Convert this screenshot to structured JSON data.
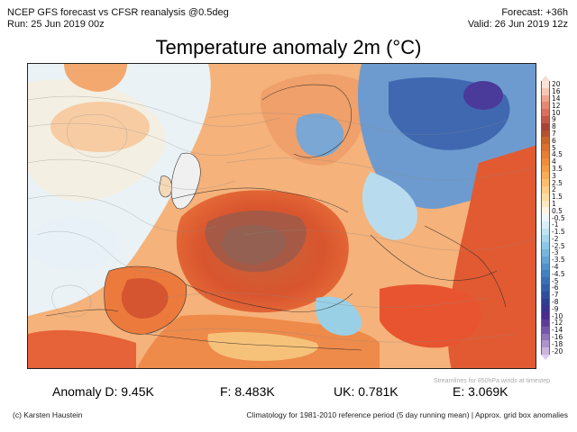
{
  "header": {
    "model": "NCEP GFS forecast vs CFSR reanalysis @0.5deg",
    "run": "Run: 25 Jun 2019 00z",
    "forecast": "Forecast: +36h",
    "valid": "Valid: 26 Jun 2019 12z"
  },
  "title": "Temperature anomaly 2m (°C)",
  "colorbar": {
    "labels": [
      "20",
      "16",
      "14",
      "12",
      "10",
      "9",
      "8",
      "7",
      "6",
      "5",
      "4.5",
      "4",
      "3.5",
      "3",
      "2.5",
      "2",
      "1.5",
      "1",
      "0.5",
      "-0.5",
      "-1",
      "-1.5",
      "-2",
      "-2.5",
      "-3",
      "-3.5",
      "-4",
      "-4.5",
      "-5",
      "-6",
      "-7",
      "-8",
      "-9",
      "-10",
      "-12",
      "-14",
      "-16",
      "-18",
      "-20"
    ],
    "colors": [
      "#fbe3d6",
      "#f4c7b4",
      "#eea58e",
      "#e48a72",
      "#d87060",
      "#c05848",
      "#a64238",
      "#b25330",
      "#c8642a",
      "#d8722e",
      "#e57f33",
      "#ee8c3b",
      "#f49b45",
      "#f7ac56",
      "#f9bd6d",
      "#fbcd88",
      "#fddba3",
      "#fee6c0",
      "#fff4e4",
      "#eef7fb",
      "#d8eef6",
      "#bfe3f1",
      "#a6d6eb",
      "#8ec7e4",
      "#78b5dc",
      "#64a2d3",
      "#5290c9",
      "#4480bf",
      "#3a6fb5",
      "#345ea8",
      "#2f4d9c",
      "#2d3f90",
      "#3a3290",
      "#4a2c8c",
      "#5e3d99",
      "#7656a8",
      "#9174ba",
      "#ad93cc",
      "#c9b5de"
    ],
    "top_triangle_color": "#f7dccf",
    "bottom_triangle_color": "#dccbee"
  },
  "stats": {
    "anomaly_d": "Anomaly D: 9.45K",
    "f": "F: 8.483K",
    "uk": "UK: 0.781K",
    "e": "E: 3.069K"
  },
  "streamlines_note": "Streamlines for 850hPa winds at timestep",
  "footer": {
    "credit": "(c) Karsten Haustein",
    "climatology": "Climatology for 1981-2010 reference period (5 day running mean) | Approx. grid box anomalies"
  }
}
